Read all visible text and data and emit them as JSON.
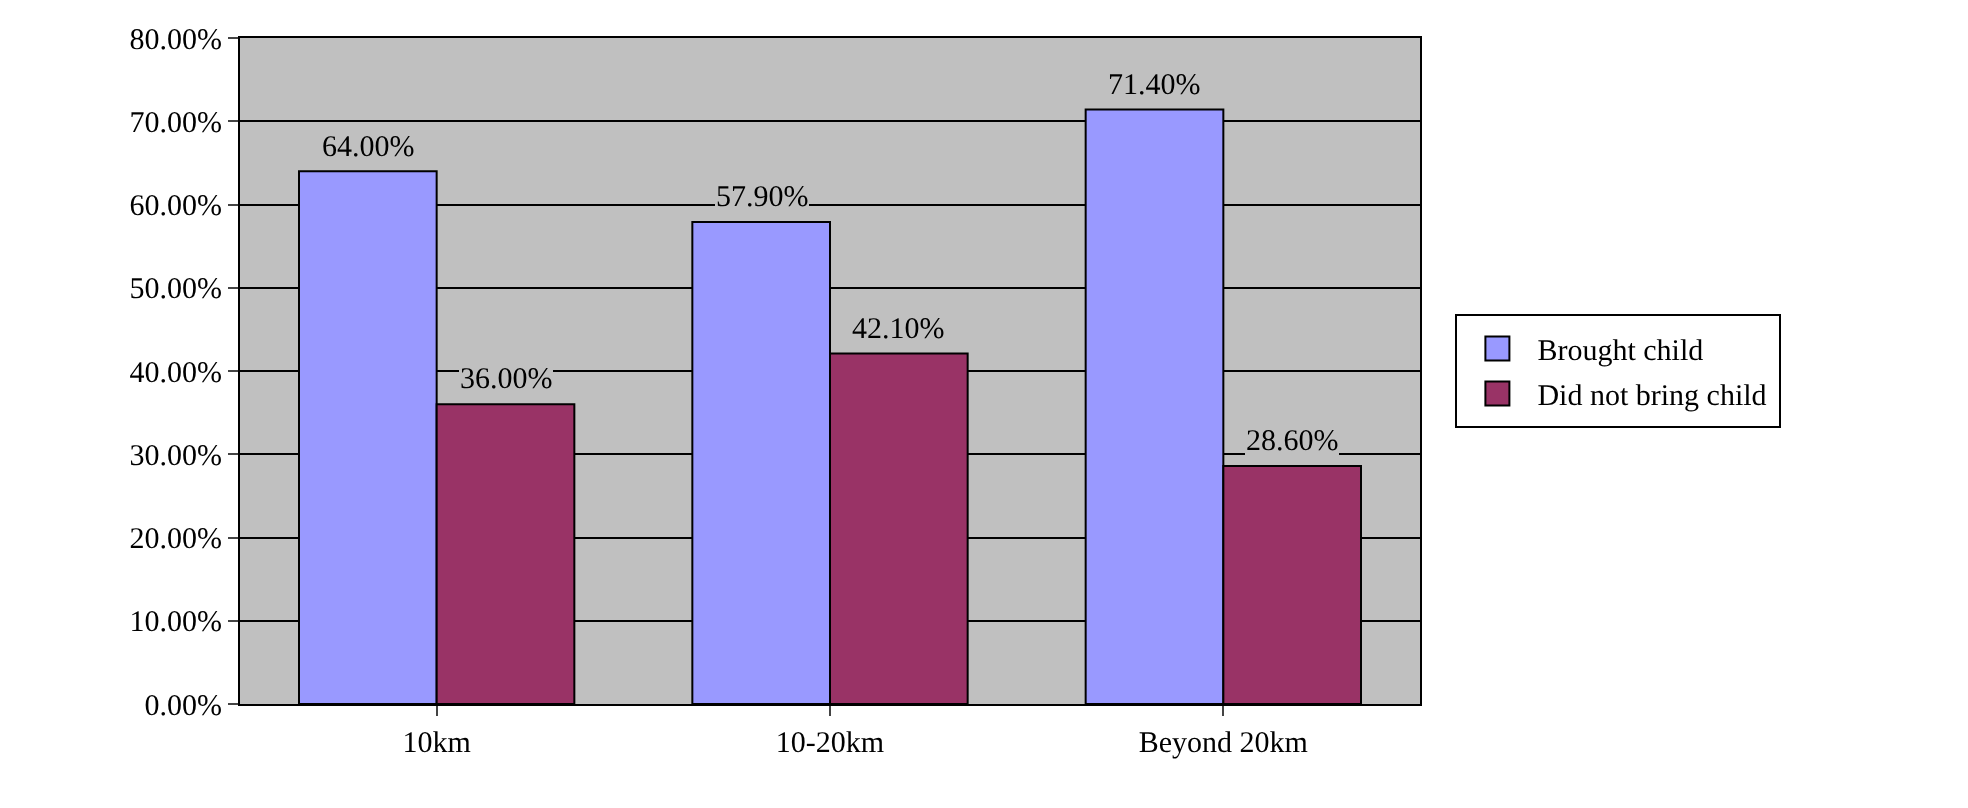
{
  "chart_data": {
    "type": "bar",
    "categories": [
      "10km",
      "10-20km",
      "Beyond 20km"
    ],
    "series": [
      {
        "name": "Brought child",
        "color": "#9999ff",
        "values": [
          64.0,
          57.9,
          71.4
        ],
        "value_labels": [
          "64.00%",
          "57.90%",
          "71.40%"
        ]
      },
      {
        "name": "Did not bring child",
        "color": "#993366",
        "values": [
          36.0,
          42.1,
          28.6
        ],
        "value_labels": [
          "36.00%",
          "42.10%",
          "28.60%"
        ]
      }
    ],
    "ylim": [
      0,
      80
    ],
    "yticks": [
      {
        "value": 0,
        "label": "0.00%"
      },
      {
        "value": 10,
        "label": "10.00%"
      },
      {
        "value": 20,
        "label": "20.00%"
      },
      {
        "value": 30,
        "label": "30.00%"
      },
      {
        "value": 40,
        "label": "40.00%"
      },
      {
        "value": 50,
        "label": "50.00%"
      },
      {
        "value": 60,
        "label": "60.00%"
      },
      {
        "value": 70,
        "label": "70.00%"
      },
      {
        "value": 80,
        "label": "80.00%"
      }
    ],
    "grid": "y",
    "legend": "right"
  }
}
